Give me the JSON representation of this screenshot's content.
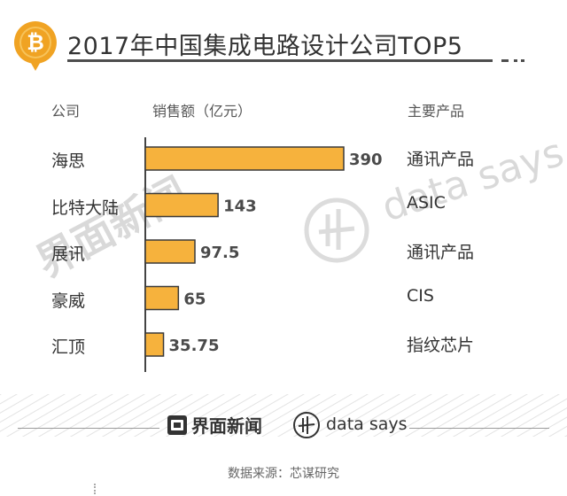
{
  "header": {
    "title": "2017年中国集成电路设计公司TOP5",
    "logo_icon": "bitcoin-icon",
    "logo_color": "#f0a323"
  },
  "columns": {
    "company": "公司",
    "sales": "销售额（亿元）",
    "product": "主要产品"
  },
  "chart_data": {
    "type": "bar",
    "orientation": "horizontal",
    "categories": [
      "海思",
      "比特大陆",
      "展讯",
      "豪威",
      "汇顶"
    ],
    "values": [
      390,
      143,
      97.5,
      65,
      35.75
    ],
    "value_labels": [
      "390",
      "143",
      "97.5",
      "65",
      "35.75"
    ],
    "products": [
      "通讯产品",
      "ASIC",
      "通讯产品",
      "CIS",
      "指纹芯片"
    ],
    "xlim": [
      0,
      390
    ],
    "bar_color": "#f6b23d",
    "bar_border_color": "#3a3a3a",
    "grid": false
  },
  "watermarks": {
    "brand_cn": "界面新闻",
    "brand_en": "data says"
  },
  "footer": {
    "brand_cn": "界面新闻",
    "brand_en": "data says",
    "source": "数据来源：芯谋研究"
  }
}
